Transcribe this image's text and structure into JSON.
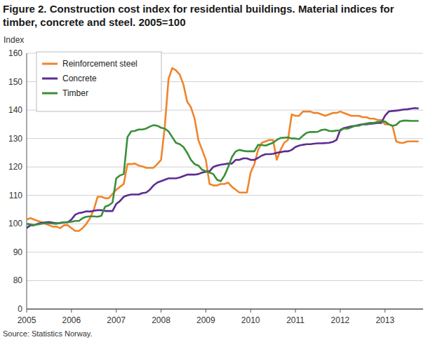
{
  "chart_data": {
    "type": "line",
    "title": "Figure 2. Construction cost index for residential buildings. Material indices for timber, concrete and steel. 2005=100",
    "y_label": "Index",
    "source": "Source: Statistics Norway.",
    "x": [
      2005,
      2005.083,
      2005.167,
      2005.25,
      2005.333,
      2005.417,
      2005.5,
      2005.583,
      2005.667,
      2005.75,
      2005.833,
      2005.917,
      2006,
      2006.083,
      2006.167,
      2006.25,
      2006.333,
      2006.417,
      2006.5,
      2006.583,
      2006.667,
      2006.75,
      2006.833,
      2006.917,
      2007,
      2007.083,
      2007.167,
      2007.25,
      2007.333,
      2007.417,
      2007.5,
      2007.583,
      2007.667,
      2007.75,
      2007.833,
      2007.917,
      2008,
      2008.083,
      2008.167,
      2008.25,
      2008.333,
      2008.417,
      2008.5,
      2008.583,
      2008.667,
      2008.75,
      2008.833,
      2008.917,
      2009,
      2009.083,
      2009.167,
      2009.25,
      2009.333,
      2009.417,
      2009.5,
      2009.583,
      2009.667,
      2009.75,
      2009.833,
      2009.917,
      2010,
      2010.083,
      2010.167,
      2010.25,
      2010.333,
      2010.417,
      2010.5,
      2010.583,
      2010.667,
      2010.75,
      2010.833,
      2010.917,
      2011,
      2011.083,
      2011.167,
      2011.25,
      2011.333,
      2011.417,
      2011.5,
      2011.583,
      2011.667,
      2011.75,
      2011.833,
      2011.917,
      2012,
      2012.083,
      2012.167,
      2012.25,
      2012.333,
      2012.417,
      2012.5,
      2012.583,
      2012.667,
      2012.75,
      2012.833,
      2012.917,
      2013,
      2013.083,
      2013.167,
      2013.25,
      2013.333,
      2013.417,
      2013.5,
      2013.583,
      2013.667,
      2013.75
    ],
    "series": [
      {
        "name": "Reinforcement steel",
        "color": "#f0842c",
        "values": [
          101.5,
          102,
          101.5,
          101,
          100.5,
          100,
          99.5,
          99,
          99,
          98.5,
          99.5,
          99.5,
          98.5,
          97.5,
          97.5,
          98.5,
          100,
          102,
          105,
          109.5,
          109.5,
          109,
          109,
          110.5,
          112,
          113,
          114,
          121,
          121,
          121.2,
          120.5,
          120.2,
          119.7,
          119.7,
          119.7,
          121,
          122.5,
          134,
          151,
          154.8,
          154,
          152.5,
          149,
          143,
          141,
          137,
          129.5,
          126,
          122.5,
          114,
          113.5,
          113.5,
          114,
          114,
          114.5,
          113,
          112,
          111,
          111,
          111,
          118,
          121,
          126,
          128.5,
          129,
          129.5,
          129.5,
          122.5,
          126,
          128.5,
          129.5,
          138.5,
          138,
          138,
          139.5,
          139.5,
          139.5,
          139,
          139,
          138.5,
          138,
          138.5,
          139,
          139,
          139.5,
          139,
          138.5,
          138,
          138,
          138,
          137.5,
          137.5,
          137,
          137,
          136.5,
          136.5,
          135,
          135,
          134.5,
          129,
          128.5,
          128.5,
          129,
          129,
          129,
          129
        ]
      },
      {
        "name": "Concrete",
        "color": "#5c2d91",
        "values": [
          98.5,
          99.5,
          99.5,
          100,
          100.3,
          100.5,
          100.6,
          100.4,
          100.2,
          100.3,
          100.5,
          100.5,
          101.5,
          103.2,
          103.8,
          104,
          104.4,
          104.3,
          104.6,
          104.8,
          104.8,
          104.5,
          104.5,
          104.5,
          107,
          108,
          109.5,
          110,
          110.3,
          110.3,
          110.3,
          110.8,
          111,
          112,
          113.5,
          114.5,
          115,
          115.5,
          116,
          116,
          116,
          116.3,
          116.8,
          117.3,
          117.3,
          117.3,
          117.5,
          118,
          118.3,
          118.5,
          120,
          120.5,
          120.8,
          121,
          121.2,
          121.2,
          122.5,
          122.5,
          123,
          123,
          122.5,
          122.5,
          123.2,
          124,
          124.5,
          124.5,
          124.6,
          125,
          125.2,
          125.5,
          125.5,
          126,
          127,
          127.5,
          127.8,
          128,
          128,
          128.2,
          128.3,
          128.3,
          128.4,
          128.5,
          128.8,
          129.5,
          133,
          133.7,
          134,
          134.3,
          134.5,
          134.8,
          135,
          135,
          135.2,
          135.3,
          135.5,
          135.5,
          138,
          139.5,
          139.7,
          139.8,
          140,
          140.2,
          140.3,
          140.5,
          140.7,
          140.6
        ]
      },
      {
        "name": "Timber",
        "color": "#3a8f3a",
        "values": [
          100,
          99.8,
          99.6,
          99.8,
          100,
          100.2,
          100.2,
          100.1,
          100,
          100.3,
          100.5,
          100.6,
          100.7,
          101,
          101,
          102,
          102.5,
          102.6,
          102.6,
          102.5,
          102.8,
          106,
          106.5,
          107.5,
          116,
          117,
          117.5,
          130.5,
          132.5,
          132.7,
          133.2,
          133.2,
          133.5,
          134.2,
          134.7,
          134.5,
          133.8,
          133.5,
          132.5,
          130.5,
          128.5,
          128,
          127,
          125,
          122.5,
          121,
          120.5,
          119,
          118.5,
          118,
          117.5,
          115.5,
          115,
          117,
          120,
          123.5,
          125.5,
          126,
          125.7,
          125.5,
          125.5,
          125.5,
          127.8,
          127.7,
          127.5,
          128,
          128.5,
          129.5,
          130.2,
          130.3,
          130.4,
          130,
          130,
          129.8,
          131,
          132,
          132.3,
          132.3,
          132.4,
          133,
          133.2,
          132.7,
          132.6,
          132.8,
          132.8,
          133.5,
          133.5,
          134,
          134.5,
          134.5,
          135,
          135.3,
          135.5,
          135.5,
          135.8,
          136,
          136,
          135,
          134.5,
          134.8,
          136,
          136.3,
          136.3,
          136.2,
          136.2,
          136.2
        ]
      }
    ],
    "xlim": [
      2005,
      2013.85
    ],
    "xticks": [
      2005,
      2006,
      2007,
      2008,
      2009,
      2010,
      2011,
      2012,
      2013
    ],
    "ylim": [
      0,
      160
    ],
    "yticks": [
      0,
      80,
      90,
      100,
      110,
      120,
      130,
      140,
      150,
      160
    ],
    "grid": true,
    "legend": "upper left"
  }
}
